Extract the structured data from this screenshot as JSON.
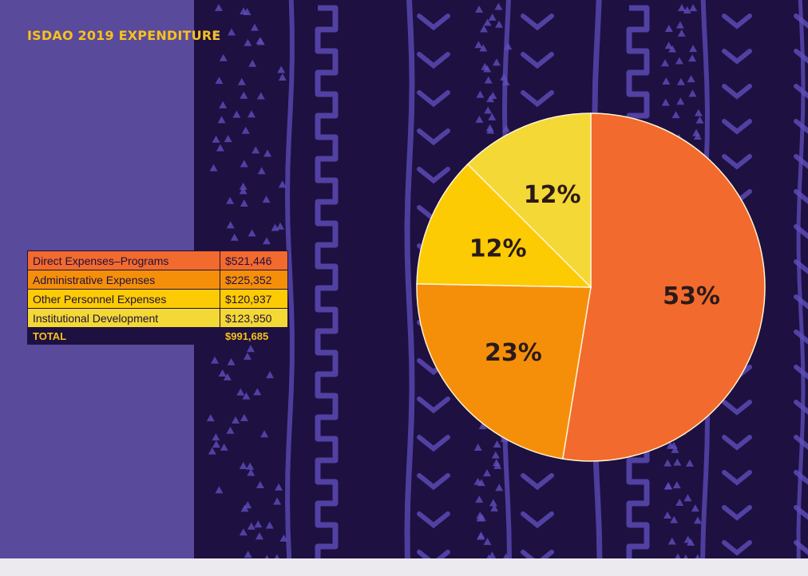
{
  "title": "ISDAO 2019 EXPENDITURE",
  "chart_data": {
    "type": "pie",
    "title": "ISDAO 2019 EXPENDITURE",
    "slices": [
      {
        "label": "Direct Expenses–Programs",
        "value": 521446,
        "display_value": "$521,446",
        "percent_label": "53%",
        "color": "#f26a2d"
      },
      {
        "label": "Administrative Expenses",
        "value": 225352,
        "display_value": "$225,352",
        "percent_label": "23%",
        "color": "#f58f0a"
      },
      {
        "label": "Other Personnel Expenses",
        "value": 120937,
        "display_value": "$120,937",
        "percent_label": "12%",
        "color": "#fccb04"
      },
      {
        "label": "Institutional Development",
        "value": 123950,
        "display_value": "$123,950",
        "percent_label": "12%",
        "color": "#f4d835"
      }
    ],
    "total": {
      "label": "TOTAL",
      "value": 991685,
      "display_value": "$991,685"
    },
    "legend": "left"
  },
  "colors": {
    "background_left": "#5a4a9b",
    "background_pattern": "#1e1040",
    "pattern_stroke": "#5e4ebc",
    "title": "#f7c21c",
    "slice_border": "#fdf4d4"
  }
}
